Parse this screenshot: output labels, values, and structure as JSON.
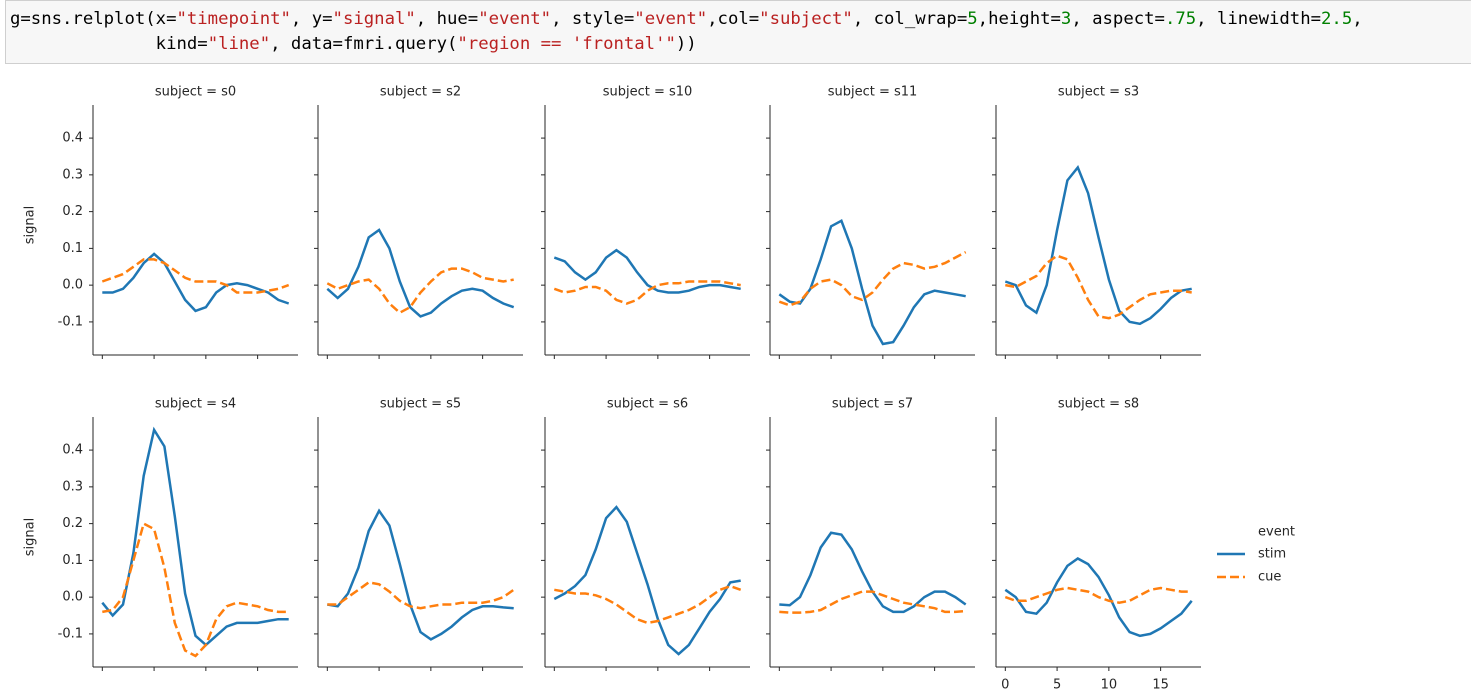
{
  "code": [
    "g=sns.relplot(x=\"timepoint\", y=\"signal\", hue=\"event\", style=\"event\",col=\"subject\", col_wrap=5,height=3, aspect=.75, linewidth=2.5,",
    "              kind=\"line\", data=fmri.query(\"region == 'frontal'\"))"
  ],
  "legend": {
    "title": "event",
    "position": "right"
  },
  "axes": {
    "xlim": [
      -0.9,
      18.9
    ],
    "xticks": [
      0,
      5,
      10,
      15
    ],
    "ylim": [
      -0.19,
      0.49
    ],
    "yticks": [
      -0.1,
      {
        "value": 0,
        "label": "0.0"
      },
      0.1,
      0.2,
      0.3,
      0.4
    ]
  },
  "chart_data": [
    {
      "type": "line",
      "title": "subject = s0",
      "ylabel": "signal",
      "x": [
        0,
        1,
        2,
        3,
        4,
        5,
        6,
        7,
        8,
        9,
        10,
        11,
        12,
        13,
        14,
        15,
        16,
        17,
        18
      ],
      "series": [
        {
          "name": "stim",
          "color": "#1f77b4",
          "dash": "solid",
          "values": [
            -0.02,
            -0.02,
            -0.01,
            0.02,
            0.06,
            0.085,
            0.06,
            0.01,
            -0.04,
            -0.07,
            -0.06,
            -0.02,
            0.0,
            0.005,
            0.0,
            -0.01,
            -0.02,
            -0.04,
            -0.05
          ]
        },
        {
          "name": "cue",
          "color": "#ff7f0e",
          "dash": "dashed",
          "values": [
            0.01,
            0.02,
            0.03,
            0.05,
            0.07,
            0.07,
            0.06,
            0.04,
            0.02,
            0.01,
            0.01,
            0.01,
            0.0,
            -0.02,
            -0.02,
            -0.02,
            -0.015,
            -0.01,
            0.0
          ]
        }
      ]
    },
    {
      "type": "line",
      "title": "subject = s2",
      "x": [
        0,
        1,
        2,
        3,
        4,
        5,
        6,
        7,
        8,
        9,
        10,
        11,
        12,
        13,
        14,
        15,
        16,
        17,
        18
      ],
      "series": [
        {
          "name": "stim",
          "color": "#1f77b4",
          "dash": "solid",
          "values": [
            -0.01,
            -0.035,
            -0.01,
            0.05,
            0.13,
            0.15,
            0.1,
            0.01,
            -0.06,
            -0.085,
            -0.075,
            -0.05,
            -0.03,
            -0.015,
            -0.01,
            -0.015,
            -0.035,
            -0.05,
            -0.06
          ]
        },
        {
          "name": "cue",
          "color": "#ff7f0e",
          "dash": "dashed",
          "values": [
            0.005,
            -0.01,
            0.0,
            0.01,
            0.015,
            -0.01,
            -0.05,
            -0.075,
            -0.06,
            -0.02,
            0.01,
            0.035,
            0.045,
            0.045,
            0.035,
            0.02,
            0.015,
            0.01,
            0.015
          ]
        }
      ]
    },
    {
      "type": "line",
      "title": "subject = s10",
      "x": [
        0,
        1,
        2,
        3,
        4,
        5,
        6,
        7,
        8,
        9,
        10,
        11,
        12,
        13,
        14,
        15,
        16,
        17,
        18
      ],
      "series": [
        {
          "name": "stim",
          "color": "#1f77b4",
          "dash": "solid",
          "values": [
            0.075,
            0.065,
            0.035,
            0.015,
            0.035,
            0.075,
            0.095,
            0.075,
            0.035,
            0.0,
            -0.015,
            -0.02,
            -0.02,
            -0.015,
            -0.005,
            0.0,
            0.0,
            -0.005,
            -0.01
          ]
        },
        {
          "name": "cue",
          "color": "#ff7f0e",
          "dash": "dashed",
          "values": [
            -0.01,
            -0.02,
            -0.015,
            -0.005,
            -0.005,
            -0.015,
            -0.04,
            -0.05,
            -0.04,
            -0.015,
            0.0,
            0.005,
            0.005,
            0.01,
            0.01,
            0.01,
            0.01,
            0.005,
            0.0
          ]
        }
      ]
    },
    {
      "type": "line",
      "title": "subject = s11",
      "x": [
        0,
        1,
        2,
        3,
        4,
        5,
        6,
        7,
        8,
        9,
        10,
        11,
        12,
        13,
        14,
        15,
        16,
        17,
        18
      ],
      "series": [
        {
          "name": "stim",
          "color": "#1f77b4",
          "dash": "solid",
          "values": [
            -0.025,
            -0.045,
            -0.05,
            -0.01,
            0.07,
            0.16,
            0.175,
            0.1,
            -0.01,
            -0.11,
            -0.16,
            -0.155,
            -0.11,
            -0.06,
            -0.025,
            -0.015,
            -0.02,
            -0.025,
            -0.03
          ]
        },
        {
          "name": "cue",
          "color": "#ff7f0e",
          "dash": "dashed",
          "values": [
            -0.045,
            -0.055,
            -0.045,
            -0.01,
            0.01,
            0.015,
            0.0,
            -0.03,
            -0.04,
            -0.02,
            0.015,
            0.045,
            0.06,
            0.055,
            0.045,
            0.05,
            0.06,
            0.075,
            0.09
          ]
        }
      ]
    },
    {
      "type": "line",
      "title": "subject = s3",
      "x": [
        0,
        1,
        2,
        3,
        4,
        5,
        6,
        7,
        8,
        9,
        10,
        11,
        12,
        13,
        14,
        15,
        16,
        17,
        18
      ],
      "series": [
        {
          "name": "stim",
          "color": "#1f77b4",
          "dash": "solid",
          "values": [
            0.01,
            0.0,
            -0.055,
            -0.075,
            0.0,
            0.15,
            0.285,
            0.32,
            0.25,
            0.13,
            0.015,
            -0.07,
            -0.1,
            -0.105,
            -0.09,
            -0.065,
            -0.035,
            -0.015,
            -0.01
          ]
        },
        {
          "name": "cue",
          "color": "#ff7f0e",
          "dash": "dashed",
          "values": [
            0.0,
            -0.005,
            0.01,
            0.025,
            0.06,
            0.08,
            0.07,
            0.02,
            -0.04,
            -0.085,
            -0.09,
            -0.08,
            -0.06,
            -0.04,
            -0.025,
            -0.02,
            -0.015,
            -0.015,
            -0.02
          ]
        }
      ]
    },
    {
      "type": "line",
      "title": "subject = s4",
      "ylabel": "signal",
      "x": [
        0,
        1,
        2,
        3,
        4,
        5,
        6,
        7,
        8,
        9,
        10,
        11,
        12,
        13,
        14,
        15,
        16,
        17,
        18
      ],
      "series": [
        {
          "name": "stim",
          "color": "#1f77b4",
          "dash": "solid",
          "values": [
            -0.015,
            -0.05,
            -0.02,
            0.12,
            0.33,
            0.455,
            0.41,
            0.22,
            0.01,
            -0.105,
            -0.13,
            -0.105,
            -0.08,
            -0.07,
            -0.07,
            -0.07,
            -0.065,
            -0.06,
            -0.06
          ]
        },
        {
          "name": "cue",
          "color": "#ff7f0e",
          "dash": "dashed",
          "values": [
            -0.04,
            -0.035,
            0.0,
            0.1,
            0.2,
            0.185,
            0.08,
            -0.07,
            -0.145,
            -0.16,
            -0.13,
            -0.06,
            -0.025,
            -0.015,
            -0.02,
            -0.025,
            -0.035,
            -0.04,
            -0.04
          ]
        }
      ]
    },
    {
      "type": "line",
      "title": "subject = s5",
      "x": [
        0,
        1,
        2,
        3,
        4,
        5,
        6,
        7,
        8,
        9,
        10,
        11,
        12,
        13,
        14,
        15,
        16,
        17,
        18
      ],
      "series": [
        {
          "name": "stim",
          "color": "#1f77b4",
          "dash": "solid",
          "values": [
            -0.02,
            -0.025,
            0.01,
            0.08,
            0.18,
            0.235,
            0.195,
            0.09,
            -0.02,
            -0.095,
            -0.115,
            -0.1,
            -0.08,
            -0.055,
            -0.035,
            -0.025,
            -0.025,
            -0.028,
            -0.03
          ]
        },
        {
          "name": "cue",
          "color": "#ff7f0e",
          "dash": "dashed",
          "values": [
            -0.02,
            -0.02,
            0.0,
            0.02,
            0.04,
            0.035,
            0.015,
            -0.01,
            -0.025,
            -0.03,
            -0.025,
            -0.02,
            -0.02,
            -0.015,
            -0.015,
            -0.015,
            -0.01,
            0.0,
            0.02
          ]
        }
      ]
    },
    {
      "type": "line",
      "title": "subject = s6",
      "x": [
        0,
        1,
        2,
        3,
        4,
        5,
        6,
        7,
        8,
        9,
        10,
        11,
        12,
        13,
        14,
        15,
        16,
        17,
        18
      ],
      "series": [
        {
          "name": "stim",
          "color": "#1f77b4",
          "dash": "solid",
          "values": [
            -0.005,
            0.01,
            0.03,
            0.06,
            0.13,
            0.215,
            0.245,
            0.205,
            0.12,
            0.035,
            -0.06,
            -0.13,
            -0.155,
            -0.13,
            -0.085,
            -0.04,
            -0.005,
            0.04,
            0.045
          ]
        },
        {
          "name": "cue",
          "color": "#ff7f0e",
          "dash": "dashed",
          "values": [
            0.02,
            0.015,
            0.01,
            0.01,
            0.005,
            -0.005,
            -0.02,
            -0.04,
            -0.06,
            -0.07,
            -0.065,
            -0.055,
            -0.045,
            -0.035,
            -0.02,
            0.0,
            0.02,
            0.03,
            0.02
          ]
        }
      ]
    },
    {
      "type": "line",
      "title": "subject = s7",
      "x": [
        0,
        1,
        2,
        3,
        4,
        5,
        6,
        7,
        8,
        9,
        10,
        11,
        12,
        13,
        14,
        15,
        16,
        17,
        18
      ],
      "series": [
        {
          "name": "stim",
          "color": "#1f77b4",
          "dash": "solid",
          "values": [
            -0.02,
            -0.022,
            0.0,
            0.06,
            0.135,
            0.175,
            0.17,
            0.13,
            0.07,
            0.015,
            -0.025,
            -0.04,
            -0.04,
            -0.025,
            0.0,
            0.015,
            0.015,
            0.0,
            -0.02
          ]
        },
        {
          "name": "cue",
          "color": "#ff7f0e",
          "dash": "dashed",
          "values": [
            -0.04,
            -0.042,
            -0.042,
            -0.04,
            -0.035,
            -0.02,
            -0.005,
            0.005,
            0.015,
            0.015,
            0.005,
            -0.005,
            -0.015,
            -0.02,
            -0.025,
            -0.03,
            -0.04,
            -0.04,
            -0.038
          ]
        }
      ]
    },
    {
      "type": "line",
      "title": "subject = s8",
      "x": [
        0,
        1,
        2,
        3,
        4,
        5,
        6,
        7,
        8,
        9,
        10,
        11,
        12,
        13,
        14,
        15,
        16,
        17,
        18
      ],
      "series": [
        {
          "name": "stim",
          "color": "#1f77b4",
          "dash": "solid",
          "values": [
            0.02,
            0.0,
            -0.04,
            -0.045,
            -0.015,
            0.04,
            0.085,
            0.105,
            0.09,
            0.055,
            0.005,
            -0.055,
            -0.095,
            -0.105,
            -0.1,
            -0.085,
            -0.065,
            -0.045,
            -0.01
          ]
        },
        {
          "name": "cue",
          "color": "#ff7f0e",
          "dash": "dashed",
          "values": [
            0.0,
            -0.01,
            -0.01,
            0.0,
            0.01,
            0.02,
            0.025,
            0.02,
            0.015,
            0.0,
            -0.01,
            -0.015,
            -0.01,
            0.005,
            0.02,
            0.025,
            0.02,
            0.015,
            0.015
          ]
        }
      ]
    }
  ]
}
